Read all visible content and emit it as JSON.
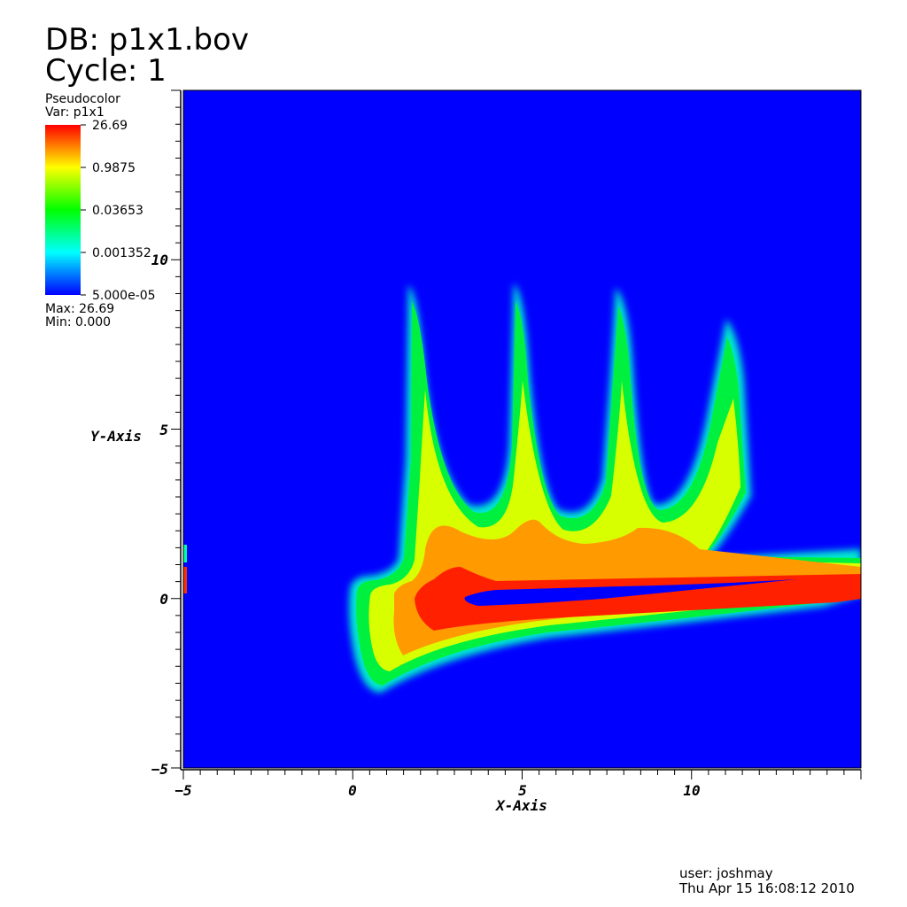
{
  "header": {
    "db": "DB: p1x1.bov",
    "cycle": "Cycle: 1"
  },
  "legend": {
    "plot_type": "Pseudocolor",
    "var": "Var: p1x1",
    "ticks": [
      "26.69",
      "0.9875",
      "0.03653",
      "0.001352",
      "5.000e-05"
    ],
    "max": "Max:  26.69",
    "min": "Min:  0.000"
  },
  "footer": {
    "user": "user: joshmay",
    "timestamp": "Thu Apr 15 16:08:12 2010"
  },
  "chart_data": {
    "type": "heatmap",
    "xlabel": "X-Axis",
    "ylabel": "Y-Axis",
    "xlim": [
      -5,
      15
    ],
    "ylim": [
      -5,
      15
    ],
    "xticks": [
      -5,
      0,
      5,
      10
    ],
    "yticks": [
      -5,
      0,
      5,
      10
    ],
    "color_scale": "log",
    "color_range": [
      5e-05,
      26.69
    ],
    "colormap": [
      "#0000ff",
      "#00ffff",
      "#00ff00",
      "#ffff00",
      "#ff0000"
    ],
    "background_color": "#0000ff"
  }
}
